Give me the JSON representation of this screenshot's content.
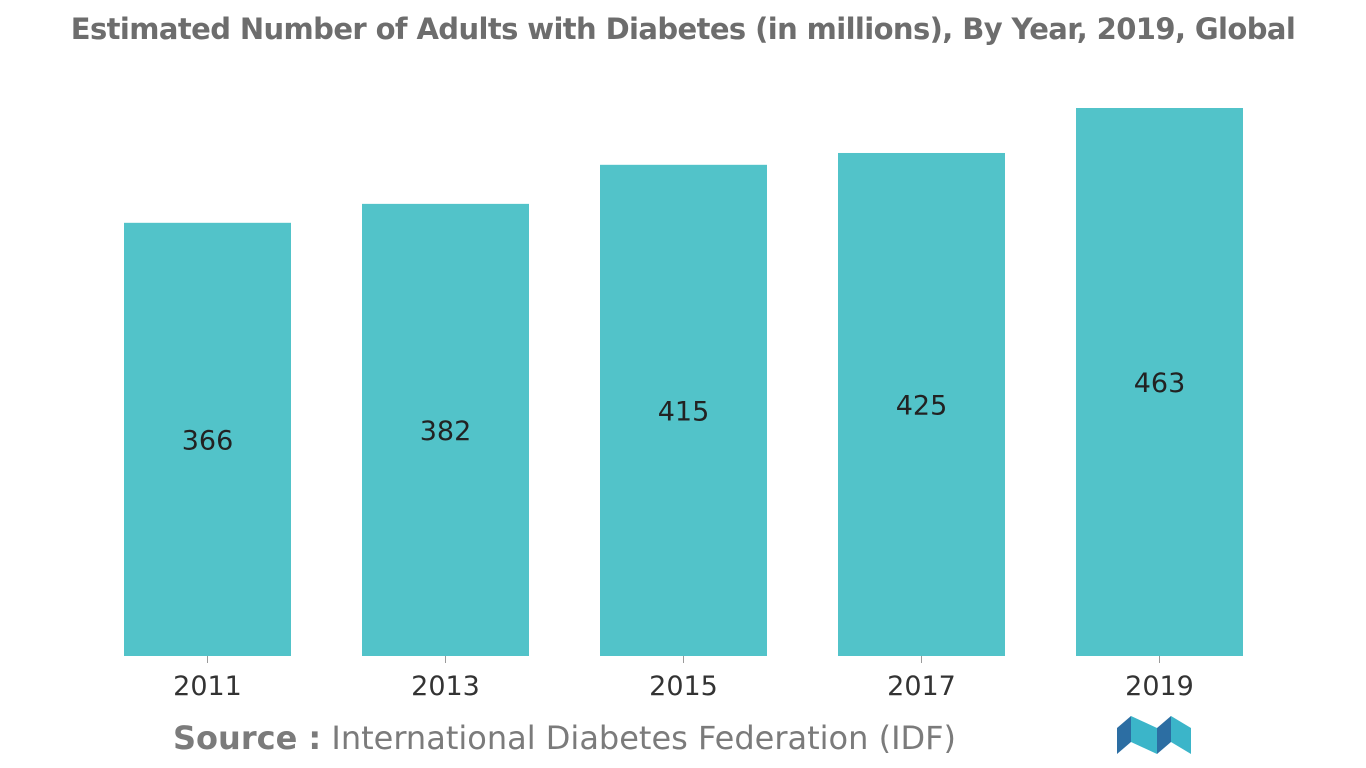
{
  "chart_data": {
    "type": "bar",
    "title": "Estimated Number of Adults with Diabetes (in millions), By Year, 2019, Global",
    "categories": [
      "2011",
      "2013",
      "2015",
      "2017",
      "2019"
    ],
    "values": [
      366,
      382,
      415,
      425,
      463
    ],
    "xlabel": "",
    "ylabel": "",
    "ylim": [
      0,
      463
    ],
    "grid": false,
    "legend": "none",
    "bar_color": "#52c3c9",
    "label_position": "inside-center"
  },
  "source": {
    "label": "Source :",
    "text": "International Diabetes Federation (IDF)"
  },
  "colors": {
    "bar": "#52c3c9",
    "title": "#6d6d6d",
    "source": "#7b7b7b",
    "logo_dark": "#2c6ea3",
    "logo_light": "#3bb5c9"
  },
  "logo": {
    "icon": "mordor-intelligence-logo-icon"
  }
}
